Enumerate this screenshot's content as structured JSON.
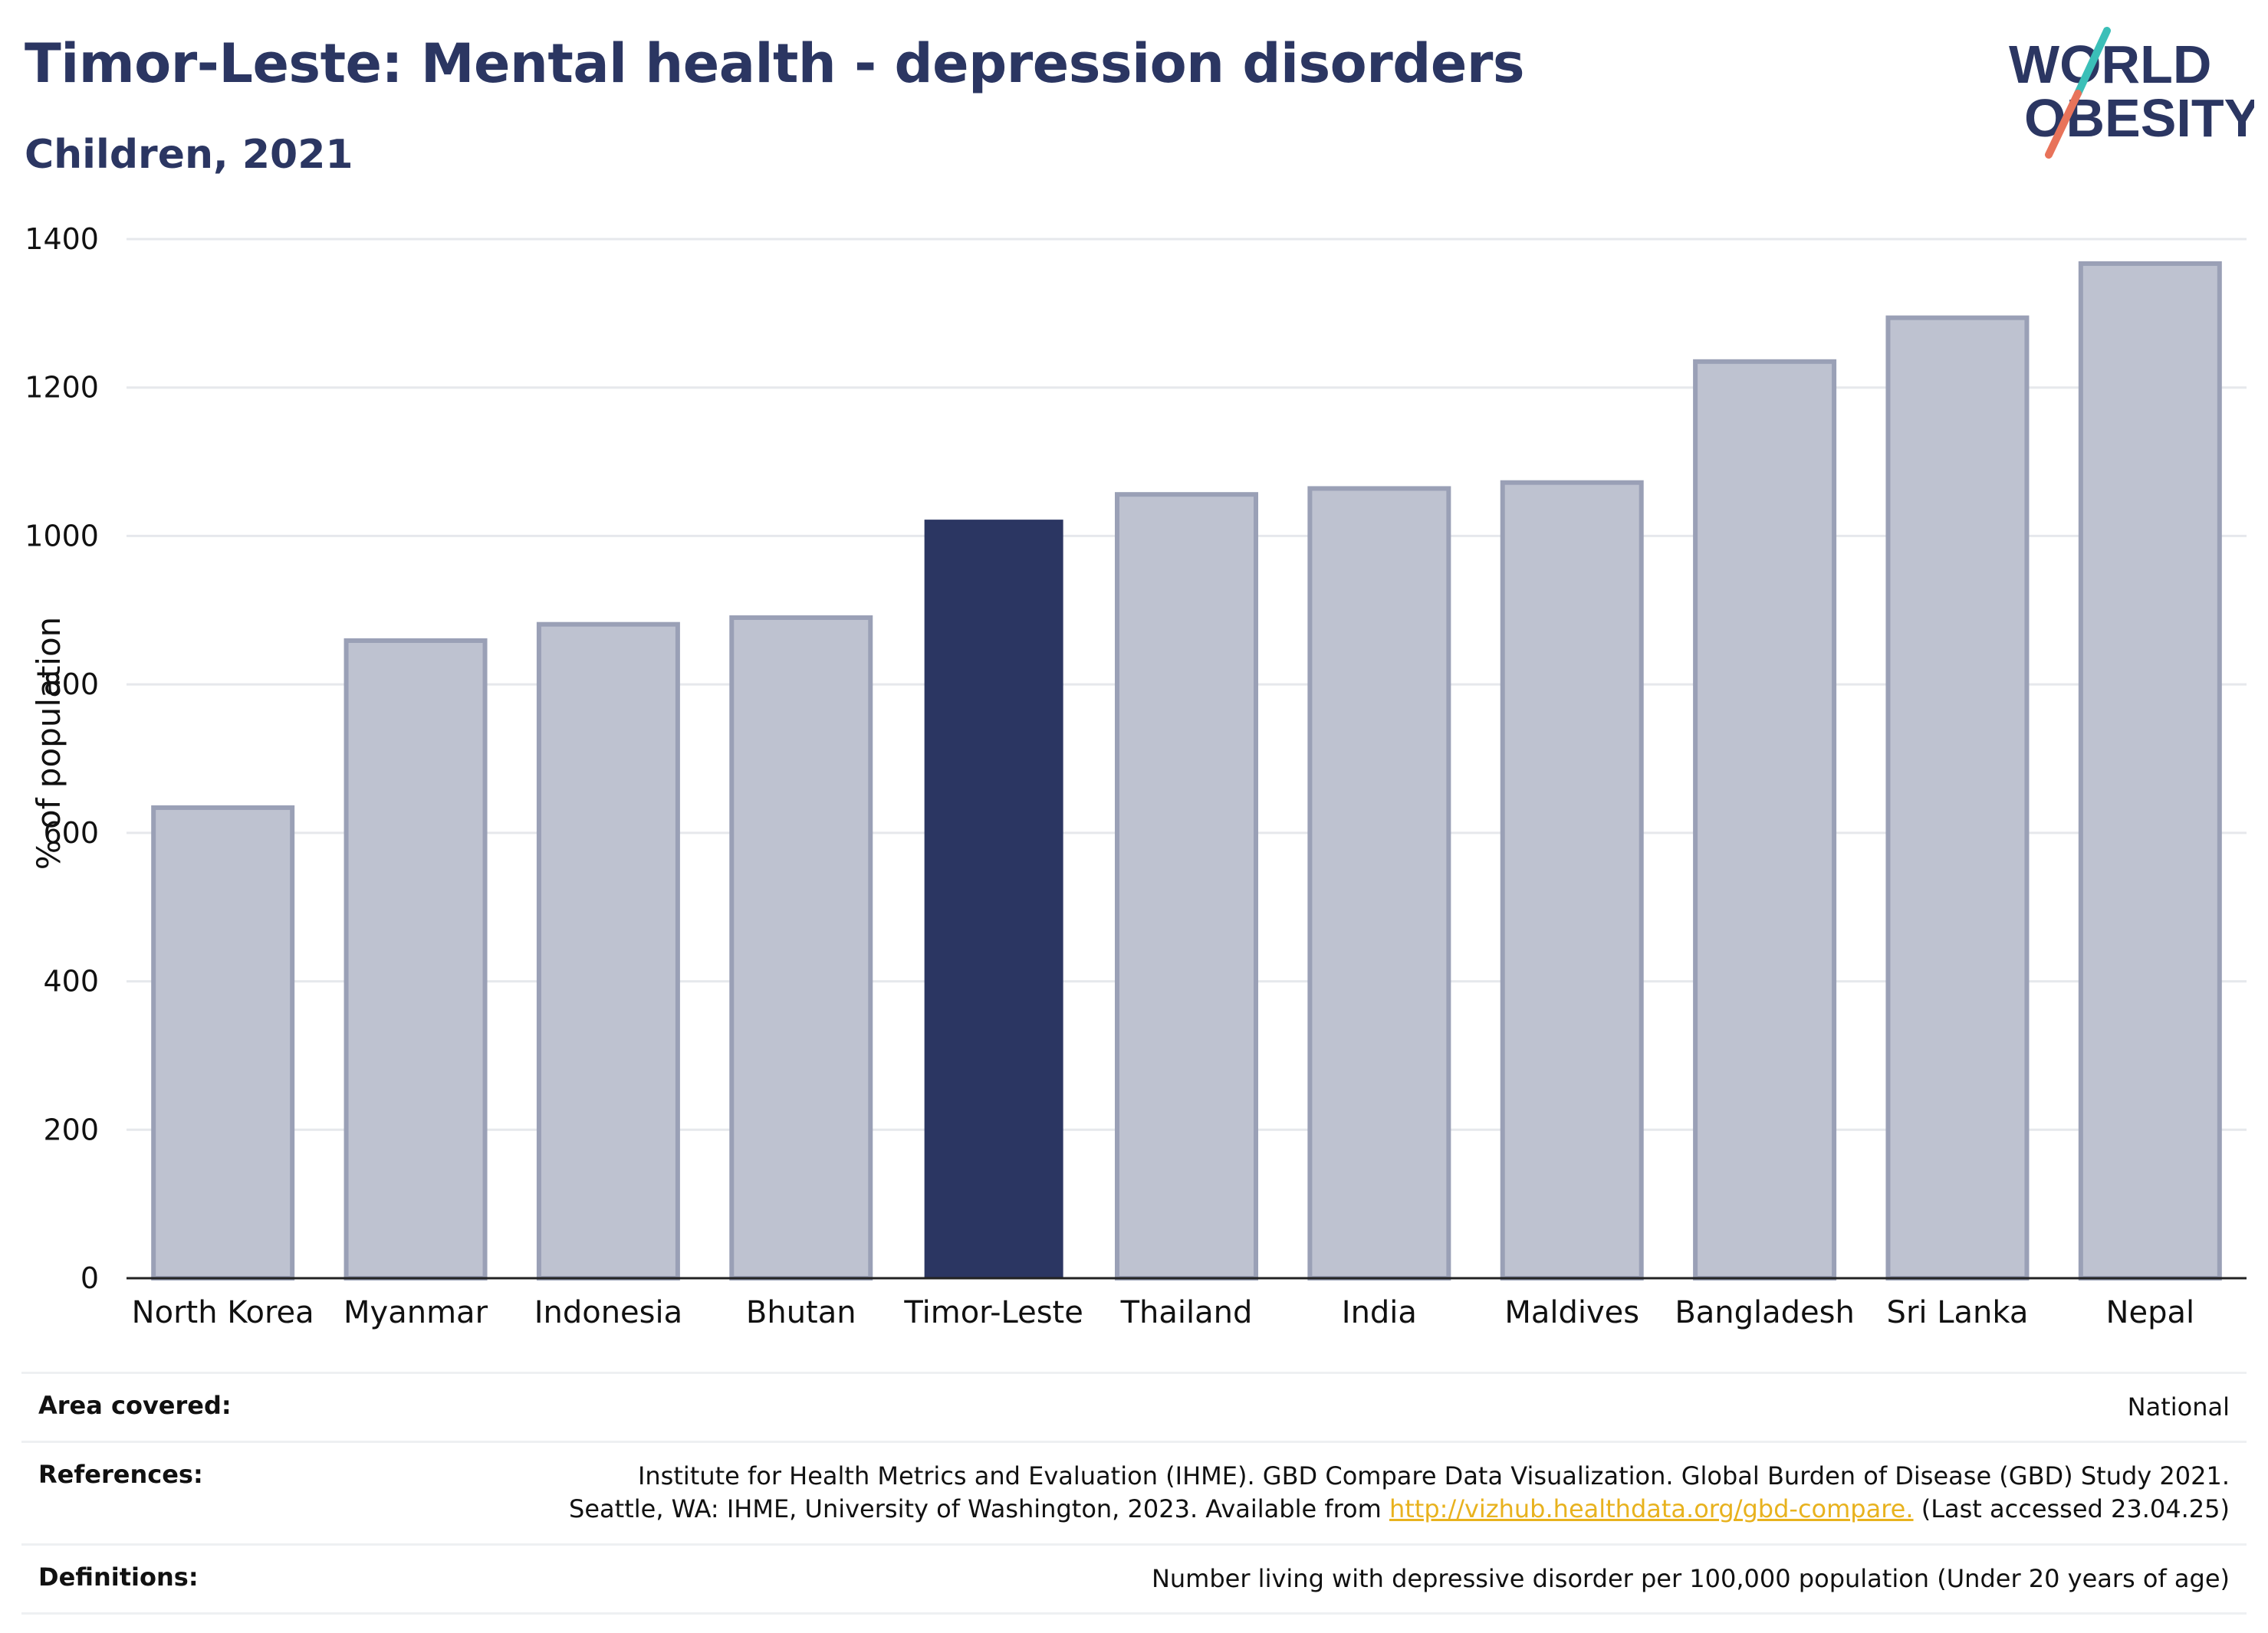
{
  "header": {
    "title": "Timor-Leste: Mental health - depression disorders",
    "subtitle": "Children, 2021"
  },
  "logo": {
    "line1": "WORLD",
    "line2": "OBESITY"
  },
  "colors": {
    "highlight": "#2b3662",
    "other": "#bec2d0",
    "other_border": "#9aa0b6",
    "brand_teal": "#3bbfb8",
    "brand_coral": "#e8735a",
    "link": "#e8b21e"
  },
  "chart_data": {
    "type": "bar",
    "title": "Timor-Leste: Mental health - depression disorders",
    "subtitle": "Children, 2021",
    "ylabel": "% of population",
    "xlabel": "",
    "ylim": [
      0,
      1400
    ],
    "yticks": [
      0,
      200,
      400,
      600,
      800,
      1000,
      1200,
      1400
    ],
    "grid": true,
    "highlight": "Timor-Leste",
    "categories": [
      "North Korea",
      "Myanmar",
      "Indonesia",
      "Bhutan",
      "Timor-Leste",
      "Thailand",
      "India",
      "Maldives",
      "Bangladesh",
      "Sri Lanka",
      "Nepal"
    ],
    "values": [
      634,
      859,
      881,
      890,
      1022,
      1056,
      1064,
      1072,
      1235,
      1294,
      1367
    ]
  },
  "info": {
    "area": {
      "label": "Area covered:",
      "value": "National"
    },
    "references": {
      "label": "References:",
      "line1": "Institute for Health Metrics and Evaluation (IHME). GBD Compare Data Visualization. Global Burden of Disease (GBD) Study 2021.",
      "line2_prefix": "Seattle, WA: IHME, University of Washington, 2023. Available from ",
      "link_text": "http://vizhub.healthdata.org/gbd-compare.",
      "line2_suffix": " (Last accessed 23.04.25)"
    },
    "definitions": {
      "label": "Definitions:",
      "value": "Number living with depressive disorder per 100,000 population (Under 20 years of age)"
    }
  }
}
